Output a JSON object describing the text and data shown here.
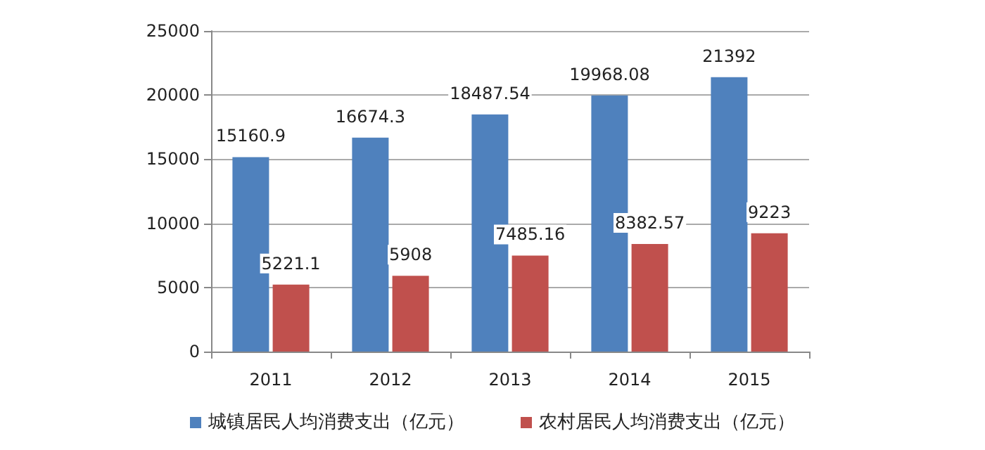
{
  "chart_data": {
    "type": "bar",
    "categories": [
      "2011",
      "2012",
      "2013",
      "2014",
      "2015"
    ],
    "series": [
      {
        "name": "城镇居民人均消费支出（亿元）",
        "color": "#4f81bd",
        "values": [
          15160.9,
          16674.3,
          18487.54,
          19968.08,
          21392
        ]
      },
      {
        "name": "农村居民人均消费支出（亿元）",
        "color": "#c0504d",
        "values": [
          5221.1,
          5908,
          7485.16,
          8382.57,
          9223
        ]
      }
    ],
    "ylim": [
      0,
      25000
    ],
    "yticks": [
      0,
      5000,
      10000,
      15000,
      20000,
      25000
    ],
    "grid": "y",
    "legend": "bottom",
    "data_labels": true
  }
}
